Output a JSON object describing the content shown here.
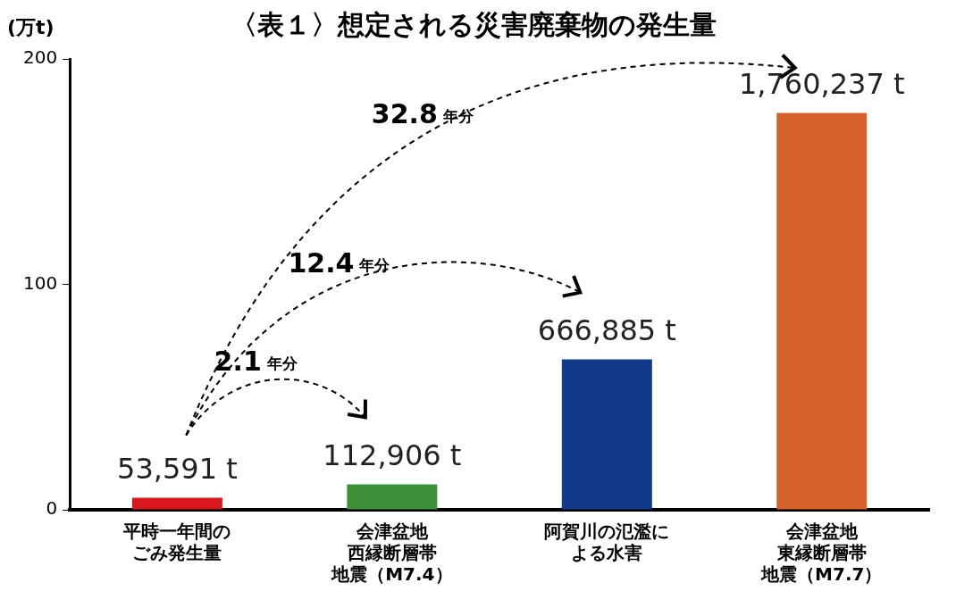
{
  "chart_data": {
    "type": "bar",
    "title": "〈表１〉想定される災害廃棄物の発生量",
    "ylabel": "(万t)",
    "categories": [
      [
        "平時一年間の",
        "ごみ発生量"
      ],
      [
        "会津盆地",
        "西縁断層帯",
        "地震（M7.4）"
      ],
      [
        "阿賀川の氾濫に",
        "よる水害"
      ],
      [
        "会津盆地",
        "東縁断層帯",
        "地震（M7.7）"
      ]
    ],
    "values": [
      5.3591,
      11.2906,
      66.6885,
      176.0237
    ],
    "value_labels": [
      "53,591 t",
      "112,906 t",
      "666,885 t",
      "1,760,237 t"
    ],
    "colors": [
      "#d7191f",
      "#3f8f3a",
      "#123a8a",
      "#d4622a"
    ],
    "ylim": [
      0,
      200
    ],
    "yticks": [
      0,
      100,
      200
    ],
    "grid": false,
    "data_labels": true,
    "annotations": [
      {
        "text": "2.1年分",
        "from": 0,
        "to": 1
      },
      {
        "text": "12.4年分",
        "from": 0,
        "to": 2
      },
      {
        "text": "32.8年分",
        "from": 0,
        "to": 3
      }
    ]
  }
}
